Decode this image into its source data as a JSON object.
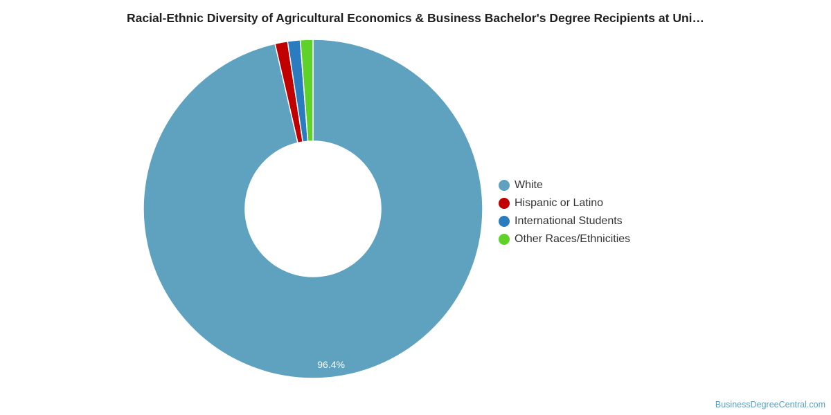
{
  "title": "Racial-Ethnic Diversity of Agricultural Economics & Business Bachelor's Degree Recipients at Uni…",
  "watermark": "BusinessDegreeCentral.com",
  "chart_data": {
    "type": "pie",
    "variant": "donut",
    "title": "Racial-Ethnic Diversity of Agricultural Economics & Business Bachelor's Degree Recipients at Uni…",
    "legend_position": "right",
    "categories": [
      "White",
      "Hispanic or Latino",
      "International Students",
      "Other Races/Ethnicities"
    ],
    "values": [
      96.4,
      1.2,
      1.2,
      1.2
    ],
    "colors": [
      "#5ea2bf",
      "#c00000",
      "#2b7bbf",
      "#5fd22a"
    ],
    "data_labels": [
      "96.4%",
      "",
      "",
      ""
    ]
  }
}
